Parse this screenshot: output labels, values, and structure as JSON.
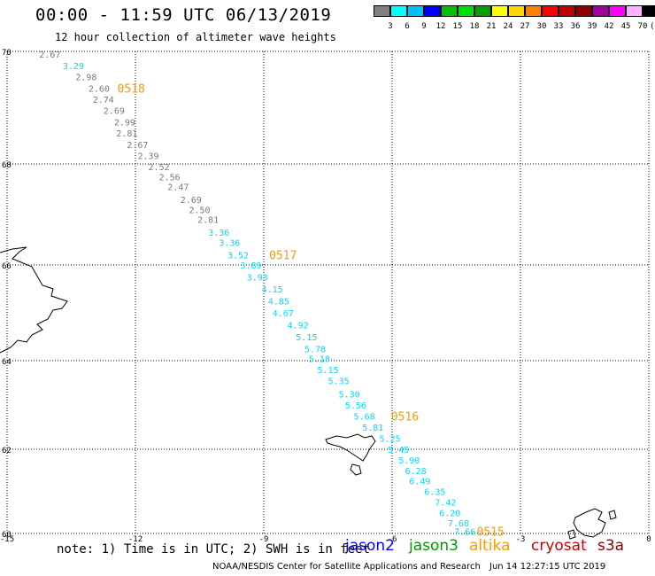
{
  "header": {
    "title": "00:00 - 11:59 UTC 06/13/2019",
    "subtitle": "12 hour collection of altimeter wave heights"
  },
  "legend": {
    "colors": [
      "#7f7f7f",
      "#00ffff",
      "#00bfff",
      "#0000ff",
      "#00c000",
      "#00e000",
      "#00a000",
      "#ffff00",
      "#ffd700",
      "#ff8000",
      "#ff0000",
      "#c00000",
      "#900000",
      "#a000a0",
      "#ff00ff",
      "#ffb0ff",
      "#000000"
    ],
    "labels": [
      "3",
      "6",
      "9",
      "12",
      "15",
      "18",
      "21",
      "24",
      "27",
      "30",
      "33",
      "36",
      "39",
      "42",
      "45",
      "70",
      "(ft)"
    ]
  },
  "map": {
    "lon_ticks": [
      "-15",
      "-12",
      "-9",
      "-6",
      "-3",
      "0"
    ],
    "lat_ticks": [
      "70",
      "68",
      "66",
      "64",
      "62",
      "60"
    ],
    "lon_range": [
      -15,
      0
    ],
    "lat_range": [
      60,
      70
    ],
    "grid_style": "dotted",
    "track_colors": {
      "gray": "#7a7a7a",
      "cyan": "#00d8ff",
      "pass": "#ff9900"
    },
    "points": [
      {
        "lat": 69.95,
        "lon": -14.0,
        "v": "2.67",
        "c": "gray"
      },
      {
        "lat": 69.75,
        "lon": -13.45,
        "v": "3.29",
        "c": "cyan"
      },
      {
        "lat": 69.55,
        "lon": -13.15,
        "v": "2.98",
        "c": "gray"
      },
      {
        "lat": 69.35,
        "lon": -12.85,
        "v": "2.60",
        "c": "gray"
      },
      {
        "lat": 69.15,
        "lon": -12.75,
        "v": "2.74",
        "c": "gray"
      },
      {
        "lat": 68.95,
        "lon": -12.5,
        "v": "2.69",
        "c": "gray"
      },
      {
        "lat": 68.75,
        "lon": -12.25,
        "v": "2.99",
        "c": "gray"
      },
      {
        "lat": 68.55,
        "lon": -12.2,
        "v": "2.81",
        "c": "gray"
      },
      {
        "lat": 68.35,
        "lon": -11.95,
        "v": "2.67",
        "c": "gray"
      },
      {
        "lat": 68.15,
        "lon": -11.7,
        "v": "2.39",
        "c": "gray"
      },
      {
        "lat": 67.95,
        "lon": -11.45,
        "v": "2.52",
        "c": "gray"
      },
      {
        "lat": 67.75,
        "lon": -11.2,
        "v": "2.56",
        "c": "gray"
      },
      {
        "lat": 67.55,
        "lon": -11.0,
        "v": "2.47",
        "c": "gray"
      },
      {
        "lat": 67.3,
        "lon": -10.7,
        "v": "2.69",
        "c": "gray"
      },
      {
        "lat": 67.1,
        "lon": -10.5,
        "v": "2.50",
        "c": "gray"
      },
      {
        "lat": 66.9,
        "lon": -10.3,
        "v": "2.81",
        "c": "gray"
      },
      {
        "lat": 66.65,
        "lon": -10.05,
        "v": "3.36",
        "c": "cyan"
      },
      {
        "lat": 66.45,
        "lon": -9.8,
        "v": "3.36",
        "c": "cyan"
      },
      {
        "lat": 66.2,
        "lon": -9.6,
        "v": "3.52",
        "c": "cyan"
      },
      {
        "lat": 66.0,
        "lon": -9.3,
        "v": "3.89",
        "c": "cyan"
      },
      {
        "lat": 65.75,
        "lon": -9.15,
        "v": "3.93",
        "c": "cyan"
      },
      {
        "lat": 65.5,
        "lon": -8.8,
        "v": "4.15",
        "c": "cyan"
      },
      {
        "lat": 65.25,
        "lon": -8.65,
        "v": "4.85",
        "c": "cyan"
      },
      {
        "lat": 65.0,
        "lon": -8.55,
        "v": "4.67",
        "c": "cyan"
      },
      {
        "lat": 64.75,
        "lon": -8.2,
        "v": "4.92",
        "c": "cyan"
      },
      {
        "lat": 64.5,
        "lon": -8.0,
        "v": "5.15",
        "c": "cyan"
      },
      {
        "lat": 64.25,
        "lon": -7.8,
        "v": "5.78",
        "c": "cyan"
      },
      {
        "lat": 64.05,
        "lon": -7.7,
        "v": "5.18",
        "c": "cyan"
      },
      {
        "lat": 63.8,
        "lon": -7.5,
        "v": "5.15",
        "c": "cyan"
      },
      {
        "lat": 63.55,
        "lon": -7.25,
        "v": "5.35",
        "c": "cyan"
      },
      {
        "lat": 63.25,
        "lon": -7.0,
        "v": "5.30",
        "c": "cyan"
      },
      {
        "lat": 63.0,
        "lon": -6.85,
        "v": "5.56",
        "c": "cyan"
      },
      {
        "lat": 62.75,
        "lon": -6.65,
        "v": "5.68",
        "c": "cyan"
      },
      {
        "lat": 62.5,
        "lon": -6.45,
        "v": "5.81",
        "c": "cyan"
      },
      {
        "lat": 62.25,
        "lon": -6.05,
        "v": "5.25",
        "c": "cyan"
      },
      {
        "lat": 62.0,
        "lon": -5.85,
        "v": "5.45",
        "c": "cyan"
      },
      {
        "lat": 61.75,
        "lon": -5.6,
        "v": "5.90",
        "c": "cyan"
      },
      {
        "lat": 61.5,
        "lon": -5.45,
        "v": "6.28",
        "c": "cyan"
      },
      {
        "lat": 61.25,
        "lon": -5.35,
        "v": "6.49",
        "c": "cyan"
      },
      {
        "lat": 61.0,
        "lon": -5.0,
        "v": "6.35",
        "c": "cyan"
      },
      {
        "lat": 60.75,
        "lon": -4.75,
        "v": "7.42",
        "c": "cyan"
      },
      {
        "lat": 60.5,
        "lon": -4.65,
        "v": "6.20",
        "c": "cyan"
      },
      {
        "lat": 60.25,
        "lon": -4.45,
        "v": "7.68",
        "c": "cyan"
      },
      {
        "lat": 60.05,
        "lon": -4.3,
        "v": "7.66",
        "c": "cyan"
      }
    ],
    "pass_labels": [
      {
        "lat": 69.35,
        "lon": -12.1,
        "t": "0518"
      },
      {
        "lat": 66.2,
        "lon": -8.55,
        "t": "0517"
      },
      {
        "lat": 62.75,
        "lon": -5.7,
        "t": "0516"
      },
      {
        "lat": 60.05,
        "lon": -3.7,
        "t": "0515"
      }
    ]
  },
  "footer": {
    "note": "note: 1) Time is in UTC; 2) SWH is in feet",
    "satellites": [
      {
        "name": "jason2",
        "color": "#0000ff"
      },
      {
        "name": "jason3",
        "color": "#009900"
      },
      {
        "name": "altika",
        "color": "#ff9900"
      },
      {
        "name": "cryosat",
        "color": "#cc0000"
      },
      {
        "name": "s3a",
        "color": "#8b0000"
      }
    ],
    "credit": "NOAA/NESDIS Center for Satellite Applications and Research",
    "timestamp": "Jun 14 12:27:15 UTC 2019"
  }
}
